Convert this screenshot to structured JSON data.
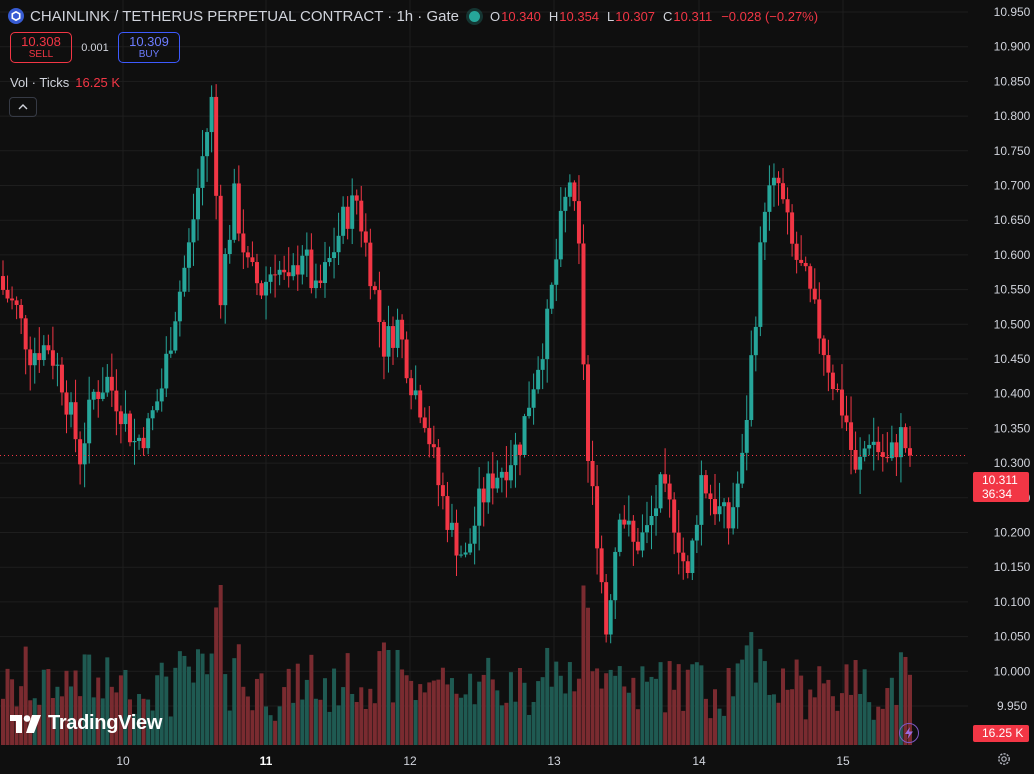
{
  "header": {
    "symbol_title": "CHAINLINK / TETHERUS PERPETUAL CONTRACT · 1h · Gate",
    "ohlc": {
      "o_label": "O",
      "o": "10.340",
      "h_label": "H",
      "h": "10.354",
      "l_label": "L",
      "l": "10.307",
      "c_label": "C",
      "c": "10.311",
      "change": "−0.028 (−0.27%)"
    }
  },
  "trade": {
    "sell_price": "10.308",
    "sell_label": "SELL",
    "spread": "0.001",
    "buy_price": "10.309",
    "buy_label": "BUY"
  },
  "volume_legend": {
    "label": "Vol · Ticks",
    "value": "16.25 K"
  },
  "price_label": {
    "price": "10.311",
    "countdown": "36:34"
  },
  "volume_label": "16.25 K",
  "branding": {
    "logo_text": "TradingView"
  },
  "icons": {
    "symbol": "chainlink-hexagon-icon",
    "collapse": "chevron-up-icon",
    "flash": "lightning-icon",
    "settings": "gear-icon"
  },
  "colors": {
    "up": "#26a69a",
    "down": "#f23645",
    "background": "#0f0f0f",
    "grid": "#1e1e1e"
  },
  "chart_data": {
    "type": "candlestick",
    "y_axis_ticks": [
      "10.950",
      "10.900",
      "10.850",
      "10.800",
      "10.750",
      "10.700",
      "10.650",
      "10.600",
      "10.550",
      "10.500",
      "10.450",
      "10.400",
      "10.350",
      "10.300",
      "10.250",
      "10.200",
      "10.150",
      "10.100",
      "10.050",
      "10.000",
      "9.950"
    ],
    "x_axis_ticks": [
      {
        "label": "10",
        "bold": false
      },
      {
        "label": "11",
        "bold": true
      },
      {
        "label": "12",
        "bold": false
      },
      {
        "label": "13",
        "bold": false
      },
      {
        "label": "14",
        "bold": false
      },
      {
        "label": "15",
        "bold": false
      }
    ],
    "ylim": [
      9.945,
      10.962
    ],
    "last_price": 10.311,
    "close_path": [
      [
        0,
        10.55
      ],
      [
        3,
        10.52
      ],
      [
        6,
        10.46
      ],
      [
        10,
        10.47
      ],
      [
        13,
        10.42
      ],
      [
        17,
        10.31
      ],
      [
        20,
        10.4
      ],
      [
        23,
        10.42
      ],
      [
        26,
        10.38
      ],
      [
        29,
        10.33
      ],
      [
        32,
        10.35
      ],
      [
        35,
        10.41
      ],
      [
        38,
        10.52
      ],
      [
        41,
        10.61
      ],
      [
        44,
        10.74
      ],
      [
        46,
        10.82
      ],
      [
        48,
        10.55
      ],
      [
        51,
        10.68
      ],
      [
        54,
        10.58
      ],
      [
        57,
        10.55
      ],
      [
        60,
        10.59
      ],
      [
        63,
        10.55
      ],
      [
        66,
        10.61
      ],
      [
        69,
        10.54
      ],
      [
        72,
        10.59
      ],
      [
        75,
        10.65
      ],
      [
        78,
        10.68
      ],
      [
        81,
        10.58
      ],
      [
        84,
        10.47
      ],
      [
        87,
        10.5
      ],
      [
        90,
        10.42
      ],
      [
        93,
        10.37
      ],
      [
        96,
        10.27
      ],
      [
        99,
        10.2
      ],
      [
        102,
        10.16
      ],
      [
        105,
        10.24
      ],
      [
        108,
        10.28
      ],
      [
        111,
        10.3
      ],
      [
        114,
        10.33
      ],
      [
        117,
        10.42
      ],
      [
        120,
        10.5
      ],
      [
        123,
        10.64
      ],
      [
        125,
        10.71
      ],
      [
        127,
        10.6
      ],
      [
        129,
        10.3
      ],
      [
        131,
        10.2
      ],
      [
        133,
        10.06
      ],
      [
        136,
        10.24
      ],
      [
        139,
        10.18
      ],
      [
        142,
        10.2
      ],
      [
        145,
        10.26
      ],
      [
        148,
        10.22
      ],
      [
        151,
        10.13
      ],
      [
        154,
        10.28
      ],
      [
        157,
        10.24
      ],
      [
        160,
        10.21
      ],
      [
        163,
        10.3
      ],
      [
        166,
        10.52
      ],
      [
        168,
        10.68
      ],
      [
        171,
        10.7
      ],
      [
        174,
        10.61
      ],
      [
        177,
        10.56
      ],
      [
        180,
        10.49
      ],
      [
        183,
        10.42
      ],
      [
        186,
        10.36
      ],
      [
        188,
        10.28
      ],
      [
        191,
        10.34
      ],
      [
        193,
        10.32
      ],
      [
        195,
        10.3
      ],
      [
        198,
        10.34
      ],
      [
        200,
        10.31
      ]
    ],
    "volume_axis": {
      "axis_label": "Vol · Ticks"
    }
  }
}
